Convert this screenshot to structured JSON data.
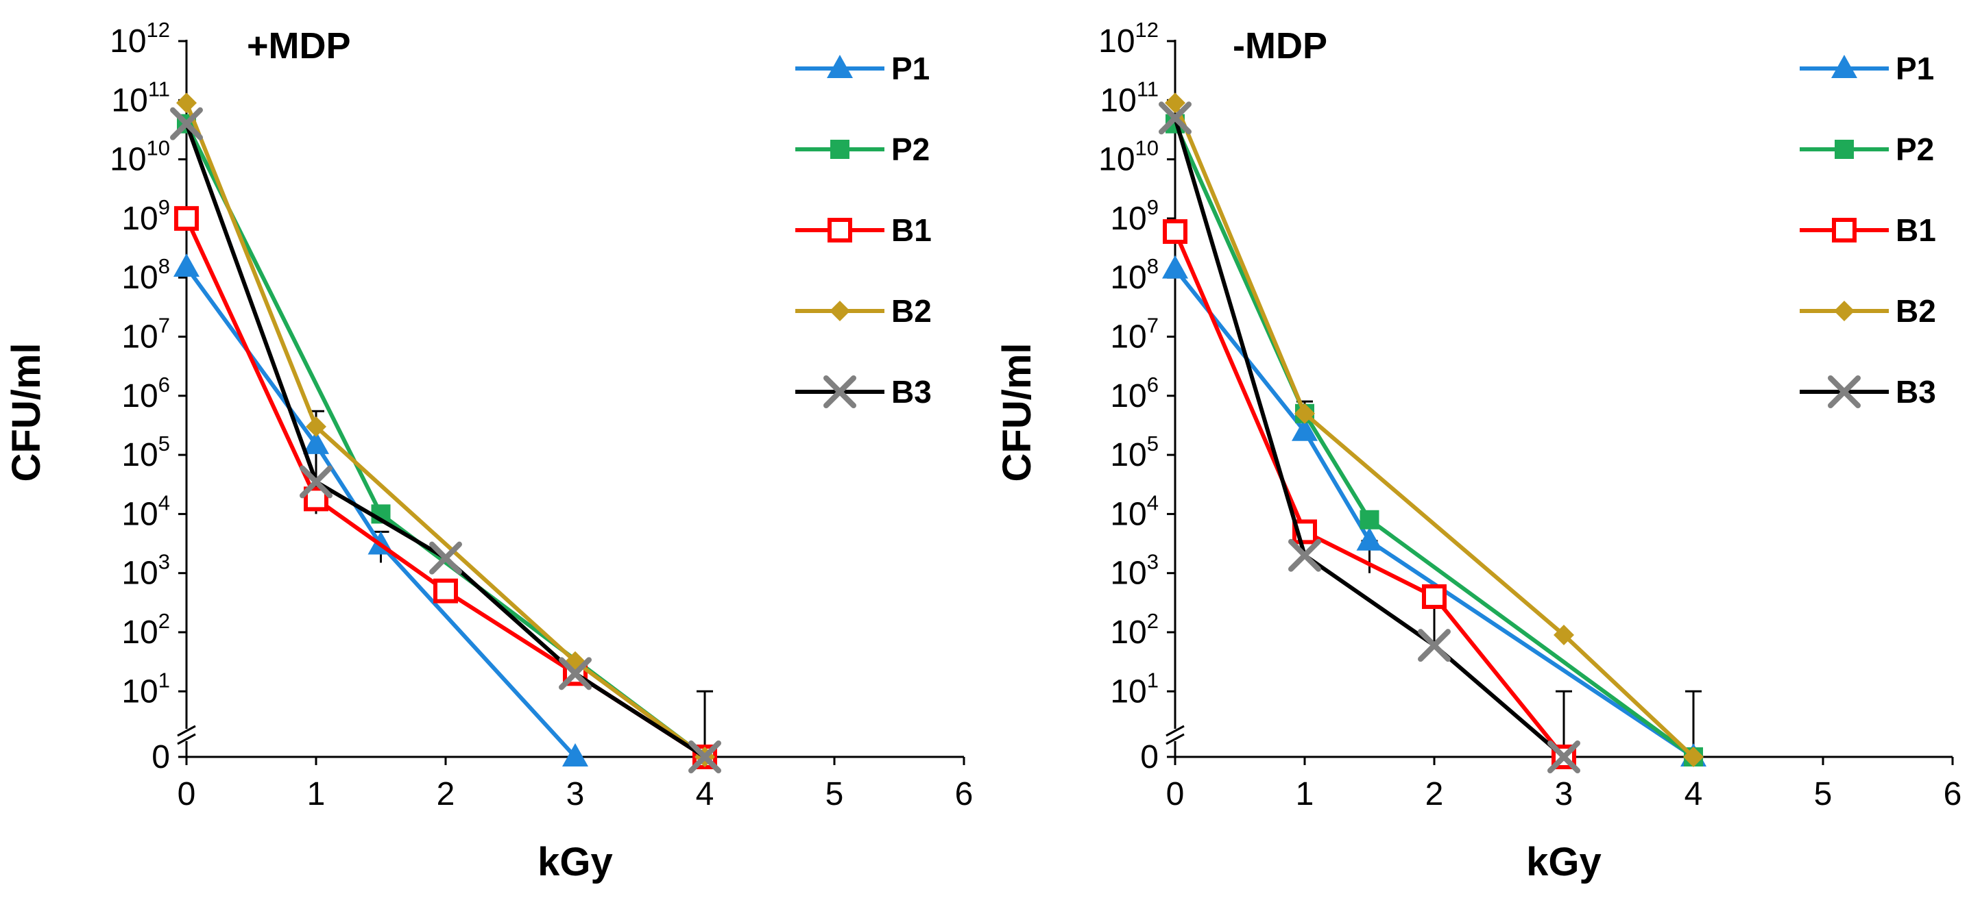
{
  "chart_data": [
    {
      "type": "line",
      "panel": "left",
      "title": "+MDP",
      "xlabel": "kGy",
      "ylabel": "CFU/ml",
      "yscale": "log",
      "xlim": [
        0,
        6
      ],
      "ylim": [
        0,
        1000000000000.0
      ],
      "x_ticks": [
        "0",
        "1",
        "2",
        "3",
        "4",
        "5",
        "6"
      ],
      "y_ticks": [
        {
          "base": "10",
          "exp": "12"
        },
        {
          "base": "10",
          "exp": "11"
        },
        {
          "base": "10",
          "exp": "10"
        },
        {
          "base": "10",
          "exp": "9"
        },
        {
          "base": "10",
          "exp": "8"
        },
        {
          "base": "10",
          "exp": "7"
        },
        {
          "base": "10",
          "exp": "6"
        },
        {
          "base": "10",
          "exp": "5"
        },
        {
          "base": "10",
          "exp": "4"
        },
        {
          "base": "10",
          "exp": "3"
        },
        {
          "base": "10",
          "exp": "2"
        },
        {
          "base": "10",
          "exp": "1"
        },
        {
          "base": "0",
          "exp": ""
        }
      ],
      "axis_break": true,
      "legend_position": "top-right",
      "series": [
        {
          "name": "P1",
          "marker": "triangle",
          "color": "#1F86DC",
          "line_color": "#1F86DC",
          "points": [
            [
              0,
              150000000.0
            ],
            [
              1,
              150000.0
            ],
            [
              1.5,
              3000.0
            ],
            [
              3,
              0
            ]
          ],
          "errors": [
            [
              1,
              150000.0,
              30000.0
            ]
          ]
        },
        {
          "name": "P2",
          "marker": "square",
          "color": "#1EAA57",
          "line_color": "#1EAA57",
          "points": [
            [
              0,
              40000000000.0
            ],
            [
              1.5,
              10000.0
            ],
            [
              4,
              0
            ]
          ],
          "errors": []
        },
        {
          "name": "B1",
          "marker": "open-square",
          "color": "#FF0000",
          "line_color": "#FF0000",
          "points": [
            [
              0,
              1000000000.0
            ],
            [
              1,
              18000.0
            ],
            [
              2,
              500
            ],
            [
              3,
              20
            ],
            [
              4,
              0
            ]
          ],
          "errors": []
        },
        {
          "name": "B2",
          "marker": "diamond",
          "color": "#C39B1E",
          "line_color": "#C39B1E",
          "points": [
            [
              0,
              90000000000.0
            ],
            [
              1,
              300000.0
            ],
            [
              3,
              32
            ],
            [
              4,
              0
            ]
          ],
          "errors": []
        },
        {
          "name": "B3",
          "marker": "x",
          "color": "#808080",
          "line_color": "#000000",
          "points": [
            [
              0,
              40000000000.0
            ],
            [
              1,
              35000.0
            ],
            [
              2,
              1800.0
            ],
            [
              3,
              20
            ],
            [
              4,
              0
            ]
          ],
          "errors": [
            [
              1,
              10000.0,
              550000.0
            ],
            [
              1.5,
              1500.0,
              5000.0
            ],
            [
              4,
              0,
              10
            ]
          ]
        }
      ]
    },
    {
      "type": "line",
      "panel": "right",
      "title": "-MDP",
      "xlabel": "kGy",
      "ylabel": "CFU/ml",
      "yscale": "log",
      "xlim": [
        0,
        6
      ],
      "ylim": [
        0,
        1000000000000.0
      ],
      "x_ticks": [
        "0",
        "1",
        "2",
        "3",
        "4",
        "5",
        "6"
      ],
      "y_ticks": [
        {
          "base": "10",
          "exp": "12"
        },
        {
          "base": "10",
          "exp": "11"
        },
        {
          "base": "10",
          "exp": "10"
        },
        {
          "base": "10",
          "exp": "9"
        },
        {
          "base": "10",
          "exp": "8"
        },
        {
          "base": "10",
          "exp": "7"
        },
        {
          "base": "10",
          "exp": "6"
        },
        {
          "base": "10",
          "exp": "5"
        },
        {
          "base": "10",
          "exp": "4"
        },
        {
          "base": "10",
          "exp": "3"
        },
        {
          "base": "10",
          "exp": "2"
        },
        {
          "base": "10",
          "exp": "1"
        },
        {
          "base": "0",
          "exp": ""
        }
      ],
      "axis_break": true,
      "legend_position": "top-right",
      "series": [
        {
          "name": "P1",
          "marker": "triangle",
          "color": "#1F86DC",
          "line_color": "#1F86DC",
          "points": [
            [
              0,
              140000000.0
            ],
            [
              1,
              250000.0
            ],
            [
              1.5,
              3500.0
            ],
            [
              4,
              0
            ]
          ],
          "errors": []
        },
        {
          "name": "P2",
          "marker": "square",
          "color": "#1EAA57",
          "line_color": "#1EAA57",
          "points": [
            [
              0,
              40000000000.0
            ],
            [
              1,
              500000.0
            ],
            [
              1.5,
              8000.0
            ],
            [
              4,
              0
            ]
          ],
          "errors": []
        },
        {
          "name": "B1",
          "marker": "open-square",
          "color": "#FF0000",
          "line_color": "#FF0000",
          "points": [
            [
              0,
              600000000.0
            ],
            [
              1,
              5000.0
            ],
            [
              2,
              400
            ],
            [
              3,
              0
            ]
          ],
          "errors": []
        },
        {
          "name": "B2",
          "marker": "diamond",
          "color": "#C39B1E",
          "line_color": "#C39B1E",
          "points": [
            [
              0,
              90000000000.0
            ],
            [
              1,
              500000.0
            ],
            [
              3,
              90
            ],
            [
              4,
              0
            ]
          ],
          "errors": [
            [
              1,
              200000.0,
              800000.0
            ],
            [
              4,
              0,
              10
            ]
          ]
        },
        {
          "name": "B3",
          "marker": "x",
          "color": "#808080",
          "line_color": "#000000",
          "points": [
            [
              0,
              50000000000.0
            ],
            [
              1,
              2000.0
            ],
            [
              2,
              60
            ],
            [
              3,
              0
            ]
          ],
          "errors": [
            [
              1.5,
              1000.0,
              3500.0
            ],
            [
              2,
              60,
              400
            ],
            [
              3,
              0,
              10
            ]
          ]
        }
      ]
    }
  ]
}
